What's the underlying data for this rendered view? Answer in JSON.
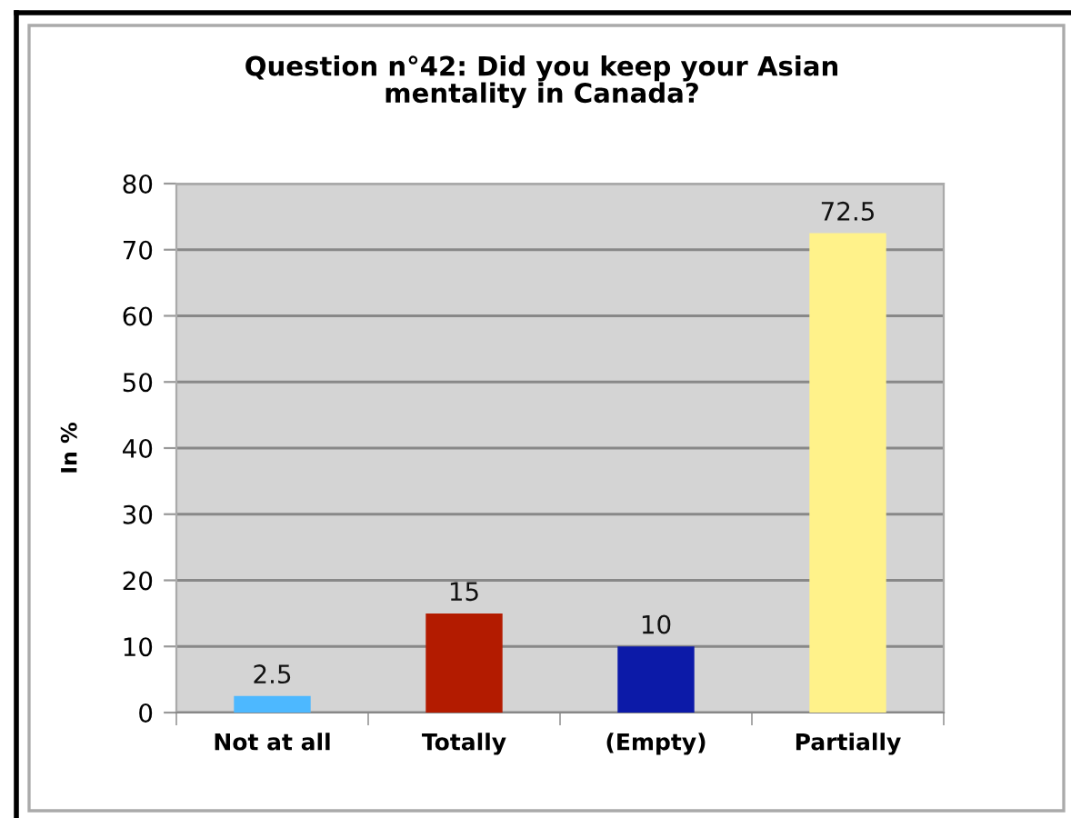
{
  "chart_data": {
    "type": "bar",
    "title": "Question n°42: Did you keep your Asian\nmentality in Canada?",
    "ylabel": "In %",
    "categories": [
      "Not at all",
      "Totally",
      "(Empty)",
      "Partially"
    ],
    "values": [
      2.5,
      15,
      10,
      72.5
    ],
    "colors": [
      "#4db8ff",
      "#b31b00",
      "#0c1aa8",
      "#fff28a"
    ],
    "ylim": [
      0,
      80
    ],
    "yticks": [
      0,
      10,
      20,
      30,
      40,
      50,
      60,
      70,
      80
    ],
    "grid": "y",
    "data_labels": true
  }
}
